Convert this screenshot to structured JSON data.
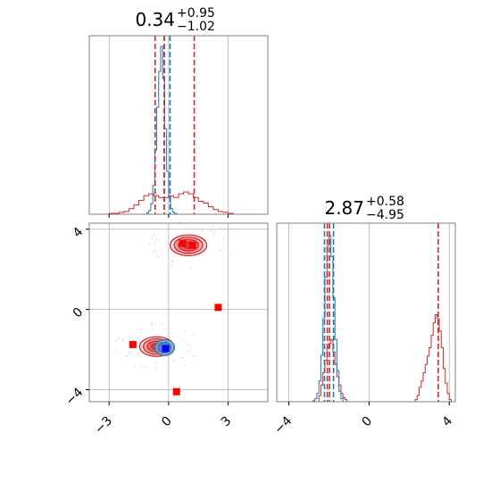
{
  "chart_data": [
    {
      "panel": "marginal-x",
      "type": "histogram",
      "title": {
        "value": "0.34",
        "plus": "+0.95",
        "minus": "−1.02"
      },
      "x_ticks": [
        "−3",
        "0",
        "3"
      ],
      "xlim": [
        -4,
        5
      ],
      "grid": true,
      "series": [
        {
          "color": "#d62728",
          "bins": [
            -4,
            -3.75,
            -3.5,
            -3.25,
            -3,
            -2.75,
            -2.5,
            -2.25,
            -2,
            -1.75,
            -1.5,
            -1.25,
            -1,
            -0.75,
            -0.5,
            -0.25,
            0,
            0.25,
            0.5,
            0.75,
            1,
            1.25,
            1.5,
            1.75,
            2,
            2.25,
            2.5,
            2.75,
            3,
            3.25,
            3.5,
            3.75,
            4
          ],
          "counts": [
            0,
            0,
            0,
            0,
            1,
            1,
            2,
            3,
            6,
            10,
            15,
            20,
            22,
            20,
            18,
            18,
            20,
            18,
            22,
            24,
            22,
            18,
            14,
            12,
            8,
            5,
            3,
            2,
            1,
            0,
            0,
            0
          ]
        },
        {
          "color": "#1f77b4",
          "bins": [
            -1.2,
            -1.1,
            -1.0,
            -0.9,
            -0.8,
            -0.7,
            -0.6,
            -0.5,
            -0.4,
            -0.3,
            -0.2,
            -0.1,
            0.0,
            0.1,
            0.2,
            0.3,
            0.4,
            0.5
          ],
          "counts": [
            0,
            2,
            5,
            15,
            40,
            90,
            150,
            200,
            235,
            190,
            120,
            60,
            25,
            8,
            3,
            1,
            0
          ]
        }
      ],
      "quantile_lines": [
        {
          "x": -0.68,
          "color": "#d62728"
        },
        {
          "x": 1.29,
          "color": "#d62728"
        },
        {
          "x": -0.22,
          "color": "#1f77b4"
        },
        {
          "x": 0.07,
          "color": "#1f77b4"
        },
        {
          "x": -0.22,
          "color": "#d62728"
        }
      ]
    },
    {
      "panel": "joint",
      "type": "contour",
      "x_ticks": [
        "−3",
        "0",
        "3"
      ],
      "y_ticks": [
        "4",
        "0",
        "−4"
      ],
      "xlim": [
        -4,
        5
      ],
      "ylim": [
        -4.6,
        4.3
      ],
      "grid": true,
      "red_clusters": [
        {
          "cx": 1.0,
          "cy": 3.2,
          "rx": 1.6,
          "ry": 0.9
        },
        {
          "cx": -0.6,
          "cy": -1.85,
          "rx": 1.5,
          "ry": 0.85
        }
      ],
      "blue_cluster": {
        "cx": -0.2,
        "cy": -1.9,
        "rx": 0.5,
        "ry": 0.4
      },
      "red_squares": [
        [
          0.7,
          3.3
        ],
        [
          1.2,
          3.2
        ],
        [
          2.5,
          0.1
        ],
        [
          -1.8,
          -1.75
        ],
        [
          0.4,
          -4.1
        ]
      ],
      "blue_squares": [
        [
          -0.15,
          -1.95
        ]
      ]
    },
    {
      "panel": "marginal-y",
      "type": "histogram",
      "title": {
        "value": "2.87",
        "plus": "+0.58",
        "minus": "−4.95"
      },
      "x_ticks": [
        "−4",
        "0",
        "4"
      ],
      "xlim": [
        -4.6,
        4.3
      ],
      "grid": true,
      "series": [
        {
          "color": "#d62728",
          "bins": [
            -2.6,
            -2.5,
            -2.4,
            -2.3,
            -2.2,
            -2.1,
            -2.0,
            -1.9,
            -1.8,
            -1.7,
            -1.6,
            -1.5,
            -1.4,
            -1.3,
            -1.2,
            -1.1,
            -1.0
          ],
          "counts": [
            0,
            3,
            8,
            14,
            20,
            26,
            28,
            30,
            24,
            18,
            12,
            8,
            4,
            2,
            1,
            0
          ]
        },
        {
          "color": "#d62728",
          "bins": [
            2.3,
            2.4,
            2.5,
            2.6,
            2.7,
            2.8,
            2.9,
            3.0,
            3.1,
            3.2,
            3.3,
            3.4,
            3.5,
            3.6,
            3.7,
            3.8,
            3.9,
            4.0,
            4.1
          ],
          "counts": [
            1,
            3,
            7,
            10,
            14,
            18,
            22,
            26,
            32,
            38,
            42,
            40,
            34,
            26,
            16,
            9,
            4,
            1
          ]
        },
        {
          "color": "#1f77b4",
          "bins": [
            -2.8,
            -2.7,
            -2.6,
            -2.5,
            -2.4,
            -2.3,
            -2.2,
            -2.1,
            -2.0,
            -1.9,
            -1.8,
            -1.7,
            -1.6,
            -1.5,
            -1.4,
            -1.3
          ],
          "counts": [
            1,
            3,
            8,
            20,
            45,
            80,
            120,
            150,
            160,
            140,
            100,
            60,
            30,
            10,
            3
          ]
        }
      ],
      "quantile_lines": [
        {
          "x": -2.22,
          "color": "#1f77b4"
        },
        {
          "x": -1.77,
          "color": "#1f77b4"
        },
        {
          "x": -1.97,
          "color": "#d62728"
        },
        {
          "x": -2.08,
          "color": "#d62728"
        },
        {
          "x": 3.45,
          "color": "#d62728"
        }
      ]
    }
  ],
  "colors": {
    "red": "#d62728",
    "blue": "#1f77b4",
    "grid": "#b0b0b0",
    "frame": "#808080"
  }
}
